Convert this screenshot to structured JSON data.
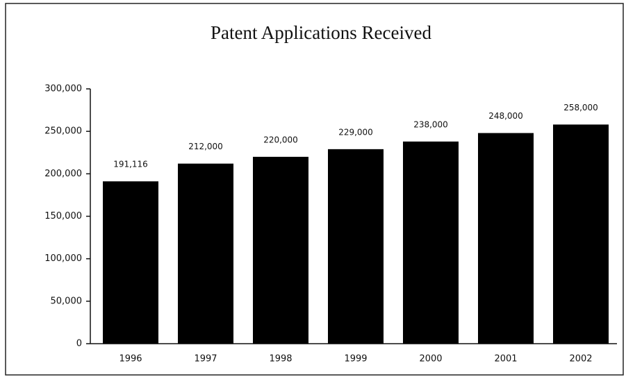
{
  "chart_data": {
    "type": "bar",
    "title": "Patent Applications Received",
    "categories": [
      "1996",
      "1997",
      "1998",
      "1999",
      "2000",
      "2001",
      "2002"
    ],
    "values": [
      191116,
      212000,
      220000,
      229000,
      238000,
      248000,
      258000
    ],
    "value_labels": [
      "191,116",
      "212,000",
      "220,000",
      "229,000",
      "238,000",
      "248,000",
      "258,000"
    ],
    "color": "#000000",
    "ylim": [
      0,
      300000
    ],
    "yticks": [
      0,
      {
        "value": 50000,
        "label": "50,000"
      },
      {
        "value": 100000,
        "label": "100,000"
      },
      {
        "value": 150000,
        "label": "150,000"
      },
      {
        "value": 200000,
        "label": "200,000"
      },
      {
        "value": 250000,
        "label": "250,000"
      },
      {
        "value": 300000,
        "label": "300,000"
      }
    ],
    "grid": false
  }
}
